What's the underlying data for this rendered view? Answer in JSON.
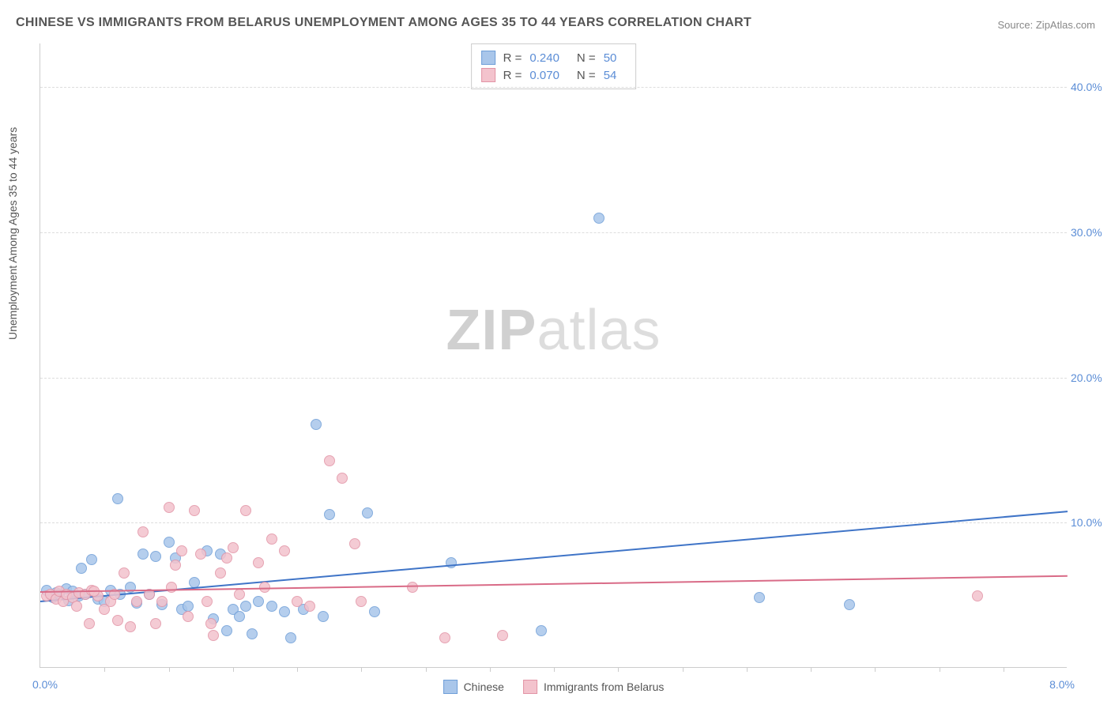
{
  "title": "CHINESE VS IMMIGRANTS FROM BELARUS UNEMPLOYMENT AMONG AGES 35 TO 44 YEARS CORRELATION CHART",
  "source": "Source: ZipAtlas.com",
  "ylabel": "Unemployment Among Ages 35 to 44 years",
  "watermark_a": "ZIP",
  "watermark_b": "atlas",
  "chart": {
    "type": "scatter",
    "background_color": "#ffffff",
    "grid_color": "#dddddd",
    "axis_color": "#cccccc",
    "tick_color": "#5b8dd6",
    "label_color": "#555555",
    "title_fontsize": 16,
    "label_fontsize": 14,
    "xlim": [
      0.0,
      8.0
    ],
    "ylim": [
      0.0,
      43.0
    ],
    "y_ticks": [
      10.0,
      20.0,
      30.0,
      40.0
    ],
    "y_tick_labels": [
      "10.0%",
      "20.0%",
      "30.0%",
      "40.0%"
    ],
    "x_origin_label": "0.0%",
    "x_max_label": "8.0%",
    "x_tick_positions": [
      0.5,
      1.0,
      1.5,
      2.0,
      2.5,
      3.0,
      3.5,
      4.0,
      4.5,
      5.0,
      5.5,
      6.0,
      6.5,
      7.0,
      7.5
    ],
    "point_radius": 7,
    "point_border_width": 1,
    "point_fill_opacity": 0.35,
    "series": [
      {
        "name": "Chinese",
        "color_fill": "#a9c6ea",
        "color_border": "#6f9fd8",
        "r_value": "0.240",
        "n_value": "50",
        "trend": {
          "x1": 0.0,
          "y1": 4.6,
          "x2": 8.0,
          "y2": 10.8,
          "color": "#3f74c7",
          "width": 2
        },
        "points": [
          [
            0.05,
            5.3
          ],
          [
            0.1,
            4.8
          ],
          [
            0.12,
            5.1
          ],
          [
            0.15,
            5.0
          ],
          [
            0.2,
            5.4
          ],
          [
            0.22,
            4.6
          ],
          [
            0.25,
            5.2
          ],
          [
            0.3,
            4.9
          ],
          [
            0.32,
            6.8
          ],
          [
            0.35,
            5.0
          ],
          [
            0.4,
            7.4
          ],
          [
            0.45,
            4.7
          ],
          [
            0.5,
            4.5
          ],
          [
            0.55,
            5.3
          ],
          [
            0.6,
            11.6
          ],
          [
            0.62,
            5.0
          ],
          [
            0.7,
            5.5
          ],
          [
            0.75,
            4.4
          ],
          [
            0.8,
            7.8
          ],
          [
            0.85,
            5.0
          ],
          [
            0.9,
            7.6
          ],
          [
            0.95,
            4.3
          ],
          [
            1.0,
            8.6
          ],
          [
            1.05,
            7.5
          ],
          [
            1.1,
            4.0
          ],
          [
            1.15,
            4.2
          ],
          [
            1.2,
            5.8
          ],
          [
            1.3,
            8.0
          ],
          [
            1.35,
            3.3
          ],
          [
            1.4,
            7.8
          ],
          [
            1.45,
            2.5
          ],
          [
            1.5,
            4.0
          ],
          [
            1.55,
            3.5
          ],
          [
            1.6,
            4.2
          ],
          [
            1.65,
            2.3
          ],
          [
            1.7,
            4.5
          ],
          [
            1.8,
            4.2
          ],
          [
            1.9,
            3.8
          ],
          [
            1.95,
            2.0
          ],
          [
            2.05,
            4.0
          ],
          [
            2.15,
            16.7
          ],
          [
            2.2,
            3.5
          ],
          [
            2.25,
            10.5
          ],
          [
            2.55,
            10.6
          ],
          [
            2.6,
            3.8
          ],
          [
            3.2,
            7.2
          ],
          [
            3.9,
            2.5
          ],
          [
            4.35,
            30.9
          ],
          [
            5.6,
            4.8
          ],
          [
            6.3,
            4.3
          ]
        ]
      },
      {
        "name": "Immigrants from Belarus",
        "color_fill": "#f3c3cd",
        "color_border": "#e294a6",
        "r_value": "0.070",
        "n_value": "54",
        "trend": {
          "x1": 0.0,
          "y1": 5.3,
          "x2": 8.0,
          "y2": 6.4,
          "color": "#d96b87",
          "width": 2
        },
        "points": [
          [
            0.05,
            4.9
          ],
          [
            0.08,
            5.0
          ],
          [
            0.12,
            4.7
          ],
          [
            0.15,
            5.2
          ],
          [
            0.18,
            4.5
          ],
          [
            0.2,
            5.0
          ],
          [
            0.25,
            4.8
          ],
          [
            0.28,
            4.2
          ],
          [
            0.3,
            5.1
          ],
          [
            0.35,
            5.0
          ],
          [
            0.38,
            3.0
          ],
          [
            0.4,
            5.3
          ],
          [
            0.45,
            4.9
          ],
          [
            0.5,
            4.0
          ],
          [
            0.55,
            4.5
          ],
          [
            0.58,
            5.0
          ],
          [
            0.6,
            3.2
          ],
          [
            0.65,
            6.5
          ],
          [
            0.7,
            2.8
          ],
          [
            0.75,
            4.5
          ],
          [
            0.8,
            9.3
          ],
          [
            0.85,
            5.0
          ],
          [
            0.9,
            3.0
          ],
          [
            0.95,
            4.5
          ],
          [
            1.0,
            11.0
          ],
          [
            1.02,
            5.5
          ],
          [
            1.05,
            7.0
          ],
          [
            1.1,
            8.0
          ],
          [
            1.15,
            3.5
          ],
          [
            1.2,
            10.8
          ],
          [
            1.25,
            7.8
          ],
          [
            1.3,
            4.5
          ],
          [
            1.33,
            3.0
          ],
          [
            1.35,
            2.2
          ],
          [
            1.4,
            6.5
          ],
          [
            1.45,
            7.5
          ],
          [
            1.5,
            8.2
          ],
          [
            1.55,
            5.0
          ],
          [
            1.6,
            10.8
          ],
          [
            1.7,
            7.2
          ],
          [
            1.75,
            5.5
          ],
          [
            1.8,
            8.8
          ],
          [
            1.9,
            8.0
          ],
          [
            2.0,
            4.5
          ],
          [
            2.1,
            4.2
          ],
          [
            2.25,
            14.2
          ],
          [
            2.35,
            13.0
          ],
          [
            2.45,
            8.5
          ],
          [
            2.5,
            4.5
          ],
          [
            2.9,
            5.5
          ],
          [
            3.15,
            2.0
          ],
          [
            3.6,
            2.2
          ],
          [
            7.3,
            4.9
          ],
          [
            0.42,
            5.2
          ]
        ]
      }
    ]
  }
}
